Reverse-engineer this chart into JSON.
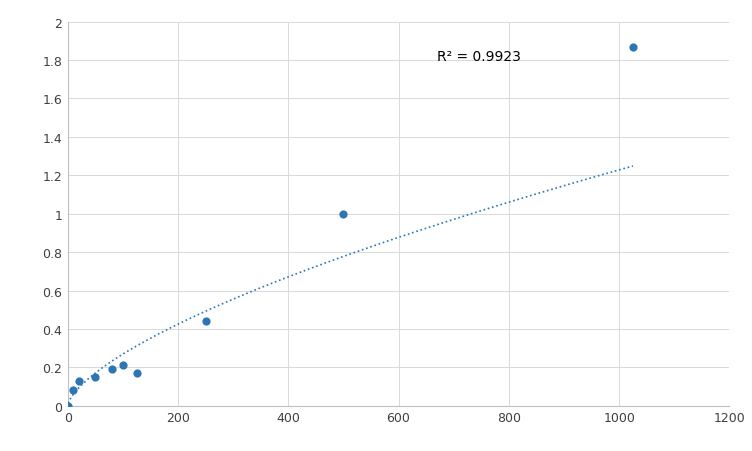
{
  "scatter_x": [
    0,
    10,
    20,
    50,
    80,
    100,
    125,
    250,
    500,
    1025
  ],
  "scatter_y": [
    0.0,
    0.08,
    0.13,
    0.15,
    0.19,
    0.21,
    0.17,
    0.44,
    1.0,
    1.87
  ],
  "r2_text": "R² = 0.9923",
  "r2_x": 670,
  "r2_y": 1.82,
  "dot_color": "#2E75B6",
  "line_color": "#2E75B6",
  "xlim": [
    0,
    1200
  ],
  "ylim": [
    0,
    2.0
  ],
  "xticks": [
    0,
    200,
    400,
    600,
    800,
    1000,
    1200
  ],
  "yticks": [
    0,
    0.2,
    0.4,
    0.6,
    0.8,
    1.0,
    1.2,
    1.4,
    1.6,
    1.8,
    2.0
  ],
  "grid_color": "#D9D9D9",
  "background_color": "#FFFFFF",
  "marker_size": 35,
  "line_width": 1.2,
  "font_size_ticks": 9,
  "font_size_r2": 10
}
